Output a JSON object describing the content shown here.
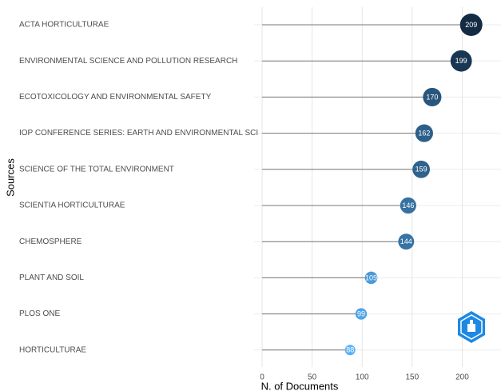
{
  "chart_data": {
    "type": "lollipop",
    "y_label": "Sources",
    "x_label": "N. of Documents",
    "categories": [
      "ACTA HORTICULTURAE",
      "ENVIRONMENTAL SCIENCE AND POLLUTION RESEARCH",
      "ECOTOXICOLOGY AND ENVIRONMENTAL SAFETY",
      "IOP CONFERENCE SERIES: EARTH AND ENVIRONMENTAL SCI",
      "SCIENCE OF THE TOTAL ENVIRONMENT",
      "SCIENTIA HORTICULTURAE",
      "CHEMOSPHERE",
      "PLANT AND SOIL",
      "PLOS ONE",
      "HORTICULTURAE"
    ],
    "values": [
      209,
      199,
      170,
      162,
      159,
      146,
      144,
      109,
      99,
      88
    ],
    "color_low": "#56b1f7",
    "color_high": "#132b43",
    "stem_color": "#777777",
    "xlim": [
      0,
      222
    ],
    "xticks": [
      0,
      50,
      100,
      150,
      200
    ],
    "grid": true
  }
}
